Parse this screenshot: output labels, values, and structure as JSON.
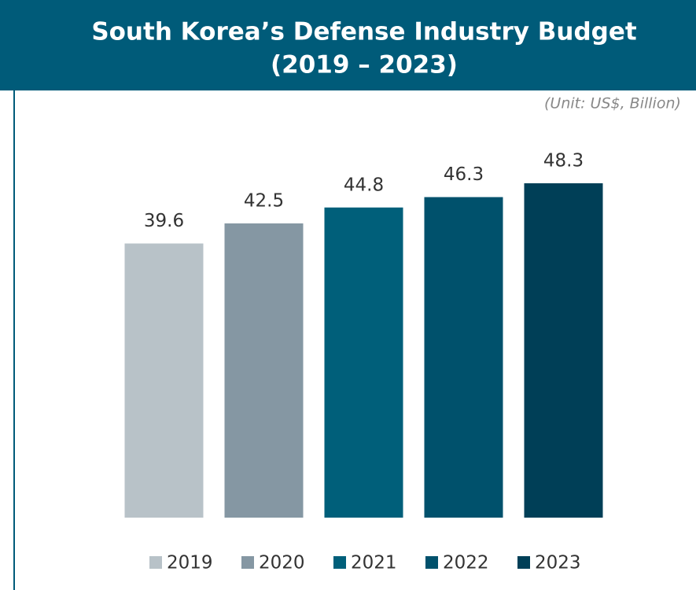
{
  "chart_data": {
    "type": "bar",
    "title": [
      "South Korea’s Defense Industry Budget",
      "(2019 – 2023)"
    ],
    "unit_note": "(Unit: US$, Billion)",
    "categories": [
      "2019",
      "2020",
      "2021",
      "2022",
      "2023"
    ],
    "values": [
      39.6,
      42.5,
      44.8,
      46.3,
      48.3
    ],
    "colors": [
      "#b8c2c8",
      "#8597a3",
      "#005f7a",
      "#00516c",
      "#003f57"
    ],
    "ylim": [
      0,
      50
    ],
    "legend": "bottom"
  }
}
